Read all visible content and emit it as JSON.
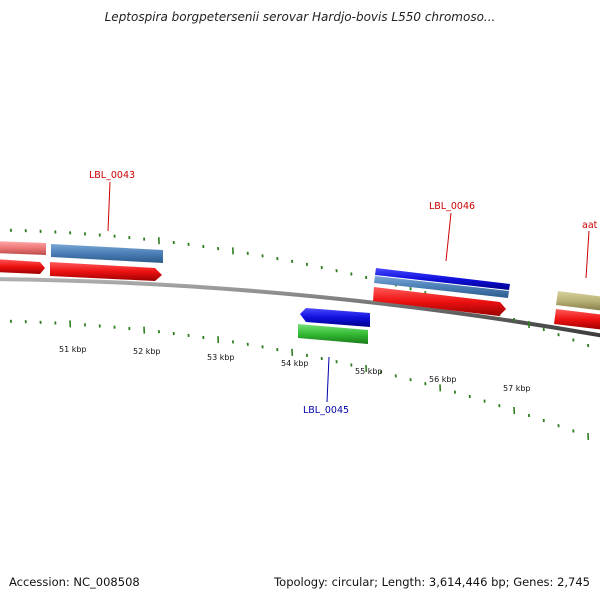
{
  "title": "Leptospira borgpetersenii serovar Hardjo-bovis L550 chromoso...",
  "footer": {
    "accession": "Accession: NC_008508",
    "summary": "Topology: circular; Length: 3,614,446 bp; Genes: 2,745"
  },
  "ticks": [
    {
      "kbp": 51,
      "label": "51 kbp"
    },
    {
      "kbp": 52,
      "label": "52 kbp"
    },
    {
      "kbp": 53,
      "label": "53 kbp"
    },
    {
      "kbp": 54,
      "label": "54 kbp"
    },
    {
      "kbp": 55,
      "label": "55 kbp"
    },
    {
      "kbp": 56,
      "label": "56 kbp"
    },
    {
      "kbp": 57,
      "label": "57 kbp"
    }
  ],
  "gene_labels": [
    {
      "id": "LBL_0043",
      "text": "LBL_0043",
      "color": "#cc0000"
    },
    {
      "id": "LBL_0045",
      "text": "LBL_0045",
      "color": "#0000aa"
    },
    {
      "id": "LBL_0046",
      "text": "LBL_0046",
      "color": "#cc0000"
    },
    {
      "id": "aat",
      "text": "aat",
      "color": "#cc0000"
    }
  ],
  "colors": {
    "backbone": "#7a7a7a",
    "tick": "#2e7d1e",
    "cds_red": "#ee1111",
    "gene_steel": "#4a7eb5",
    "gene_blue": "#1010dd",
    "gene_green": "#33bb33",
    "gene_pink": "#ee7777",
    "gene_olive": "#b8b074"
  }
}
